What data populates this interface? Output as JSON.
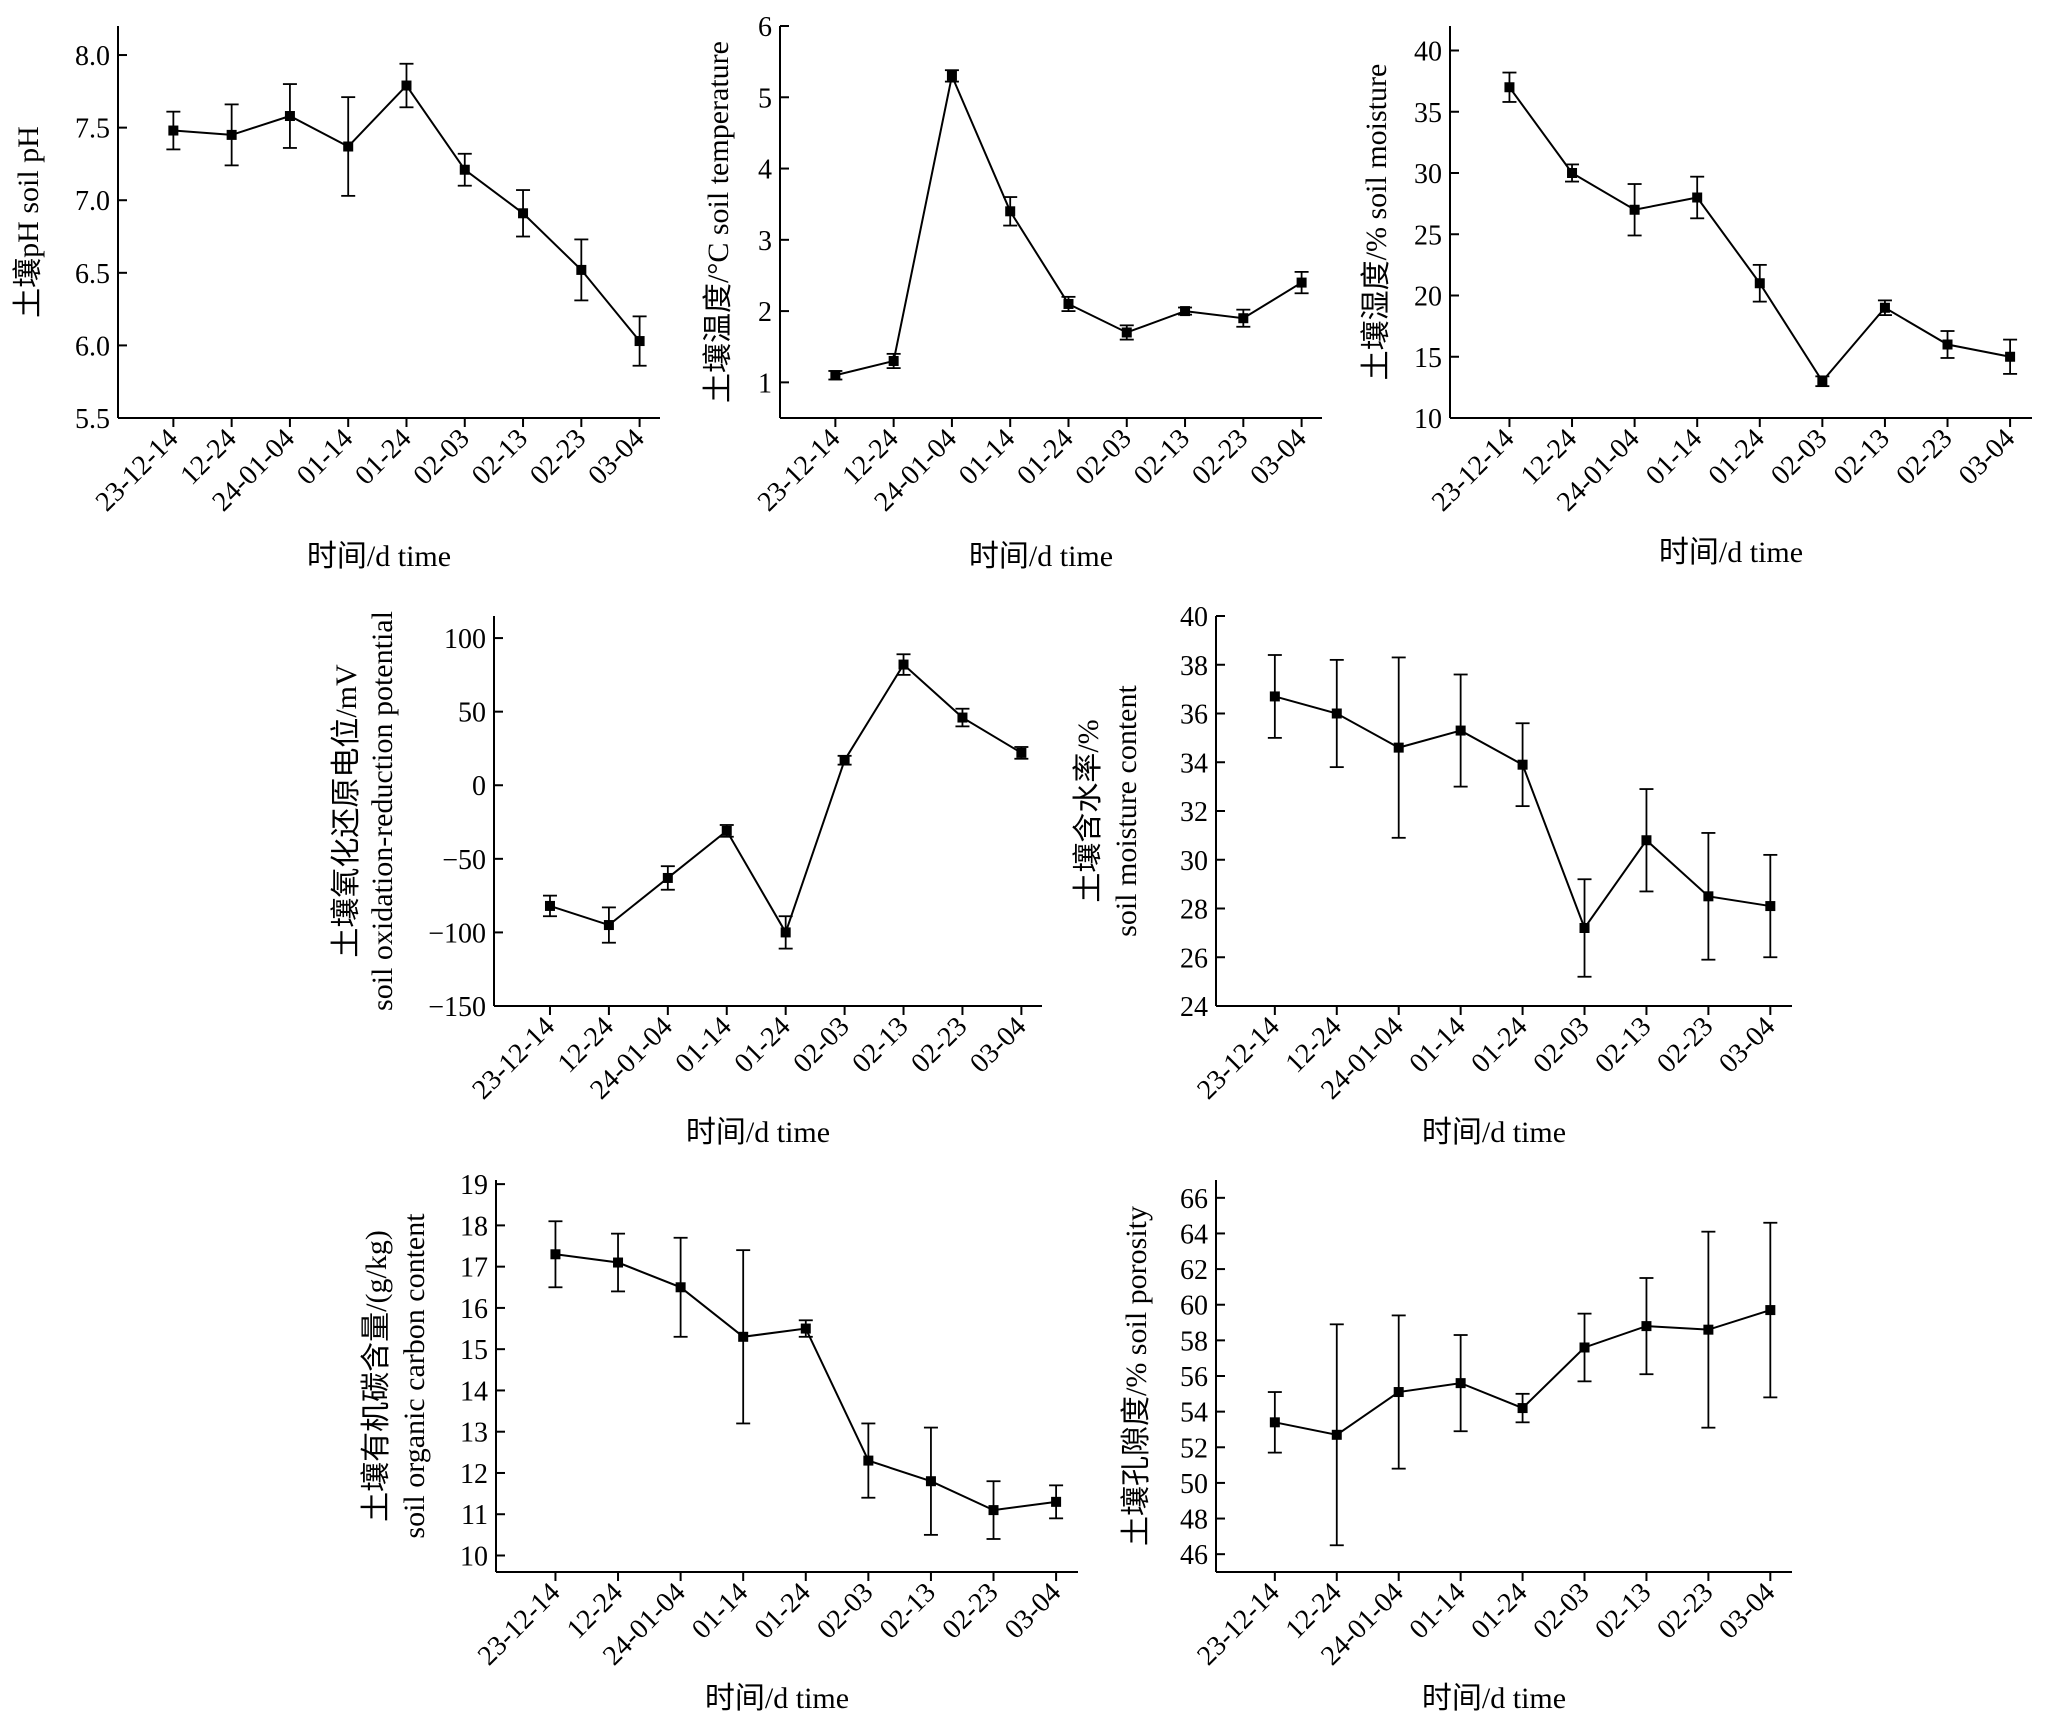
{
  "chart_data": [
    {
      "type": "line",
      "categories": [
        "23-12-14",
        "12-24",
        "24-01-04",
        "01-14",
        "01-24",
        "02-03",
        "02-13",
        "02-23",
        "03-04"
      ],
      "xlabel": "时间/d time",
      "ylabel": [
        "土壤pH soil pH"
      ],
      "ylim": [
        5.5,
        8.2
      ],
      "yticks": [
        "5.5",
        "6.0",
        "6.5",
        "7.0",
        "7.5",
        "8.0"
      ],
      "values": [
        7.48,
        7.45,
        7.58,
        7.37,
        7.79,
        7.21,
        6.91,
        6.52,
        6.03
      ],
      "errors": [
        0.13,
        0.21,
        0.22,
        0.34,
        0.15,
        0.11,
        0.16,
        0.21,
        0.17
      ]
    },
    {
      "type": "line",
      "categories": [
        "23-12-14",
        "12-24",
        "24-01-04",
        "01-14",
        "01-24",
        "02-03",
        "02-13",
        "02-23",
        "03-04"
      ],
      "xlabel": "时间/d time",
      "ylabel": [
        "土壤温度/°C soil temperature"
      ],
      "ylim": [
        0.5,
        6
      ],
      "yticks": [
        "1",
        "2",
        "3",
        "4",
        "5",
        "6"
      ],
      "values": [
        1.1,
        1.3,
        5.3,
        3.4,
        2.1,
        1.7,
        2.0,
        1.9,
        2.4
      ],
      "errors": [
        0.06,
        0.1,
        0.08,
        0.2,
        0.1,
        0.1,
        0.05,
        0.12,
        0.15
      ]
    },
    {
      "type": "line",
      "categories": [
        "23-12-14",
        "12-24",
        "24-01-04",
        "01-14",
        "01-24",
        "02-03",
        "02-13",
        "02-23",
        "03-04"
      ],
      "xlabel": "时间/d time",
      "ylabel": [
        "土壤湿度/% soil moisture"
      ],
      "ylim": [
        10,
        42
      ],
      "yticks": [
        "10",
        "15",
        "20",
        "25",
        "30",
        "35",
        "40"
      ],
      "values": [
        37,
        30,
        27,
        28,
        21,
        13,
        19,
        16,
        15
      ],
      "errors": [
        1.2,
        0.7,
        2.1,
        1.7,
        1.5,
        0.4,
        0.6,
        1.1,
        1.4
      ]
    },
    {
      "type": "line",
      "categories": [
        "23-12-14",
        "12-24",
        "24-01-04",
        "01-14",
        "01-24",
        "02-03",
        "02-13",
        "02-23",
        "03-04"
      ],
      "xlabel": "时间/d time",
      "ylabel": [
        "土壤氧化还原电位/mV",
        "soil oxidation-reduction potential"
      ],
      "ylim": [
        -150,
        115
      ],
      "yticks": [
        "−150",
        "−100",
        "−50",
        "0",
        "50",
        "100"
      ],
      "values": [
        -82,
        -95,
        -63,
        -31,
        -100,
        17,
        82,
        46,
        22
      ],
      "errors": [
        7,
        12,
        8,
        4,
        11,
        3,
        7,
        6,
        4
      ]
    },
    {
      "type": "line",
      "categories": [
        "23-12-14",
        "12-24",
        "24-01-04",
        "01-14",
        "01-24",
        "02-03",
        "02-13",
        "02-23",
        "03-04"
      ],
      "xlabel": "时间/d time",
      "ylabel": [
        "土壤含水率/%",
        "soil moisture content"
      ],
      "ylim": [
        24,
        40
      ],
      "yticks": [
        "24",
        "26",
        "28",
        "30",
        "32",
        "34",
        "36",
        "38",
        "40"
      ],
      "values": [
        36.7,
        36.0,
        34.6,
        35.3,
        33.9,
        27.2,
        30.8,
        28.5,
        28.1
      ],
      "errors": [
        1.7,
        2.2,
        3.7,
        2.3,
        1.7,
        2.0,
        2.1,
        2.6,
        2.1
      ]
    },
    {
      "type": "line",
      "categories": [
        "23-12-14",
        "12-24",
        "24-01-04",
        "01-14",
        "01-24",
        "02-03",
        "02-13",
        "02-23",
        "03-04"
      ],
      "xlabel": "时间/d time",
      "ylabel": [
        "土壤有机碳含量/(g/kg)",
        "soil organic carbon content"
      ],
      "ylim": [
        9.6,
        19.1
      ],
      "yticks": [
        "10",
        "11",
        "12",
        "13",
        "14",
        "15",
        "16",
        "17",
        "18",
        "19"
      ],
      "values": [
        17.3,
        17.1,
        16.5,
        15.3,
        15.5,
        12.3,
        11.8,
        11.1,
        11.3
      ],
      "errors": [
        0.8,
        0.7,
        1.2,
        2.1,
        0.2,
        0.9,
        1.3,
        0.7,
        0.4
      ]
    },
    {
      "type": "line",
      "categories": [
        "23-12-14",
        "12-24",
        "24-01-04",
        "01-14",
        "01-24",
        "02-03",
        "02-13",
        "02-23",
        "03-04"
      ],
      "xlabel": "时间/d time",
      "ylabel": [
        "土壤孔隙度/% soil porosity"
      ],
      "ylim": [
        45,
        67
      ],
      "yticks": [
        "46",
        "48",
        "50",
        "52",
        "54",
        "56",
        "58",
        "60",
        "62",
        "64",
        "66"
      ],
      "values": [
        53.4,
        52.7,
        55.1,
        55.6,
        54.2,
        57.6,
        58.8,
        58.6,
        59.7
      ],
      "errors": [
        1.7,
        6.2,
        4.3,
        2.7,
        0.8,
        1.9,
        2.7,
        5.5,
        4.9
      ]
    }
  ]
}
